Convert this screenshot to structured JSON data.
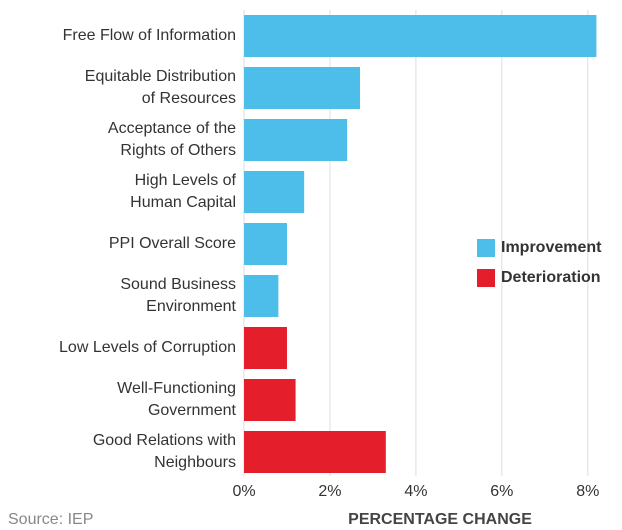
{
  "chart_data": {
    "type": "barh",
    "categories": [
      [
        "Free Flow of Information"
      ],
      [
        "Equitable Distribution",
        "of Resources"
      ],
      [
        "Acceptance of the",
        "Rights of Others"
      ],
      [
        "High Levels of",
        "Human Capital"
      ],
      [
        "PPI Overall Score"
      ],
      [
        "Sound Business",
        "Environment"
      ],
      [
        "Low Levels of Corruption"
      ],
      [
        "Well-Functioning",
        "Government"
      ],
      [
        "Good Relations with",
        "Neighbours"
      ]
    ],
    "series": [
      {
        "name": "Improvement",
        "color": "#4dbde9",
        "values": [
          8.2,
          2.7,
          2.4,
          1.4,
          1.0,
          0.8,
          null,
          null,
          null
        ]
      },
      {
        "name": "Deterioration",
        "color": "#e41e2b",
        "values": [
          null,
          null,
          null,
          null,
          null,
          null,
          1.0,
          1.2,
          3.3
        ]
      }
    ],
    "xlim": [
      0,
      8.4
    ],
    "xticks": [
      {
        "value": 0,
        "label": "0%"
      },
      {
        "value": 2,
        "label": "2%"
      },
      {
        "value": 4,
        "label": "4%"
      },
      {
        "value": 6,
        "label": "6%"
      },
      {
        "value": 8,
        "label": "8%"
      }
    ],
    "xlabel": "PERCENTAGE CHANGE",
    "source": "Source: IEP",
    "grid": true,
    "legend": "right"
  }
}
